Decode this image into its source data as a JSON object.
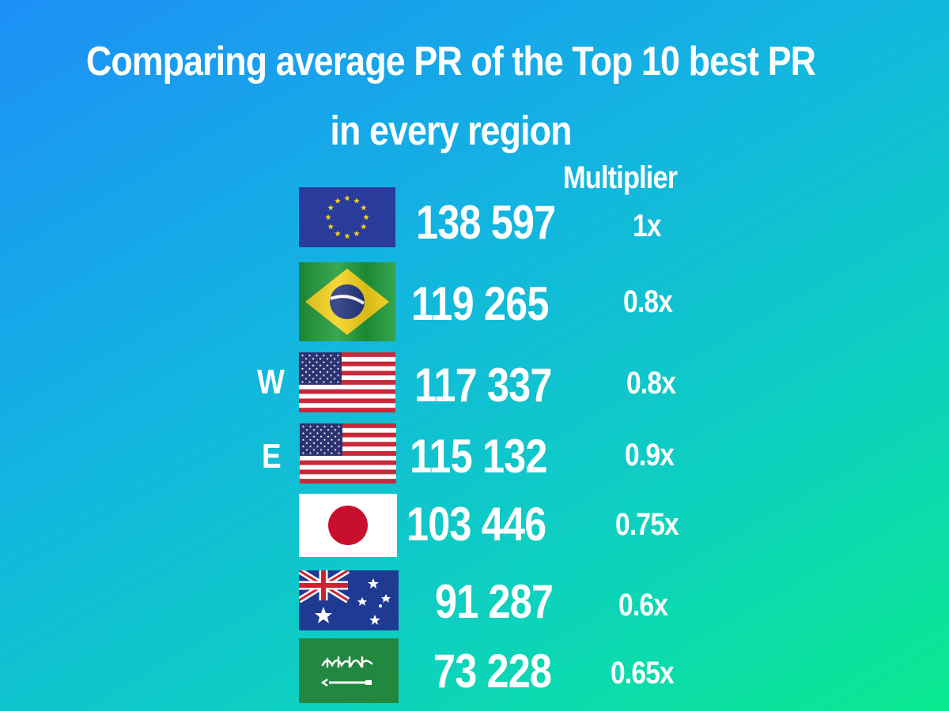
{
  "title_line1": "Comparing average PR of the Top 10 best PR",
  "title_line2": "in every region",
  "multiplier_header": "Multiplier",
  "colors": {
    "bg_start": "#1d8ff7",
    "bg_end": "#0ae98f",
    "text": "#ffffff"
  },
  "rows": [
    {
      "flag": "eu-flag-icon",
      "side_label": "",
      "value": "138 597",
      "multiplier": "1x"
    },
    {
      "flag": "brazil-flag-icon",
      "side_label": "",
      "value": "119 265",
      "multiplier": "0.8x"
    },
    {
      "flag": "usa-flag-icon",
      "side_label": "W",
      "value": "117 337",
      "multiplier": "0.8x"
    },
    {
      "flag": "usa-flag-icon",
      "side_label": "E",
      "value": "115 132",
      "multiplier": "0.9x"
    },
    {
      "flag": "japan-flag-icon",
      "side_label": "",
      "value": "103 446",
      "multiplier": "0.75x"
    },
    {
      "flag": "australia-flag-icon",
      "side_label": "",
      "value": "91 287",
      "multiplier": "0.6x"
    },
    {
      "flag": "saudi-arabia-flag-icon",
      "side_label": "",
      "value": "73 228",
      "multiplier": "0.65x"
    }
  ]
}
